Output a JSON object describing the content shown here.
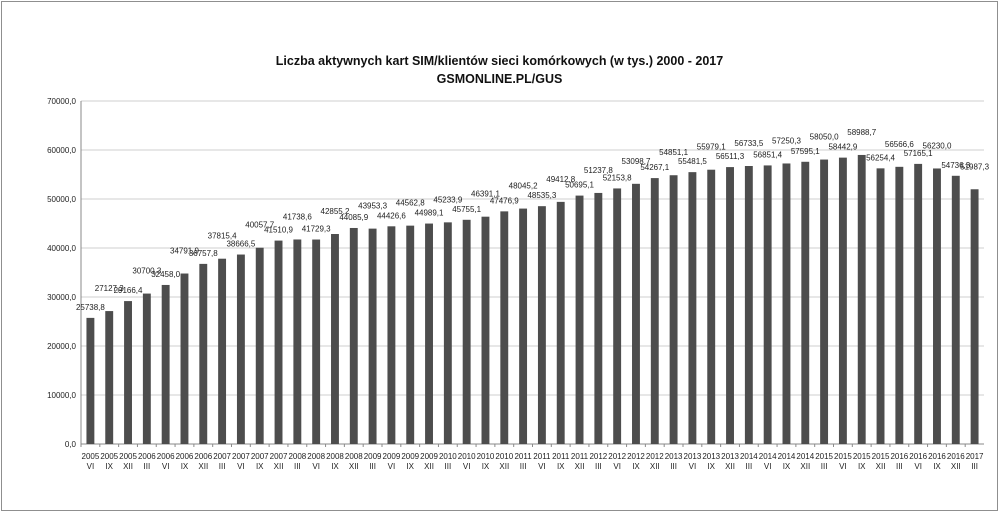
{
  "chart_data": {
    "type": "bar",
    "title": "Liczba aktywnych kart SIM/klientów sieci komórkowych (w tys.) 2000 - 2017",
    "subtitle": "GSMONLINE.PL/GUS",
    "xlabel": "",
    "ylabel": "",
    "ylim": [
      0,
      70000
    ],
    "yticks": [
      "0,0",
      "10000,0",
      "20000,0",
      "30000,0",
      "40000,0",
      "50000,0",
      "60000,0",
      "70000,0"
    ],
    "grid": true,
    "legend": "none",
    "colors": {
      "bar": "#4d4d4d",
      "grid": "#cfcfcf",
      "axis": "#8a8a8a"
    },
    "categories": [
      {
        "year": "2005",
        "q": "VI"
      },
      {
        "year": "2005",
        "q": "IX"
      },
      {
        "year": "2005",
        "q": "XII"
      },
      {
        "year": "2006",
        "q": "III"
      },
      {
        "year": "2006",
        "q": "VI"
      },
      {
        "year": "2006",
        "q": "IX"
      },
      {
        "year": "2006",
        "q": "XII"
      },
      {
        "year": "2007",
        "q": "III"
      },
      {
        "year": "2007",
        "q": "VI"
      },
      {
        "year": "2007",
        "q": "IX"
      },
      {
        "year": "2007",
        "q": "XII"
      },
      {
        "year": "2008",
        "q": "III"
      },
      {
        "year": "2008",
        "q": "VI"
      },
      {
        "year": "2008",
        "q": "IX"
      },
      {
        "year": "2008",
        "q": "XII"
      },
      {
        "year": "2009",
        "q": "III"
      },
      {
        "year": "2009",
        "q": "VI"
      },
      {
        "year": "2009",
        "q": "IX"
      },
      {
        "year": "2009",
        "q": "XII"
      },
      {
        "year": "2010",
        "q": "III"
      },
      {
        "year": "2010",
        "q": "VI"
      },
      {
        "year": "2010",
        "q": "IX"
      },
      {
        "year": "2010",
        "q": "XII"
      },
      {
        "year": "2011",
        "q": "III"
      },
      {
        "year": "2011",
        "q": "VI"
      },
      {
        "year": "2011",
        "q": "IX"
      },
      {
        "year": "2011",
        "q": "XII"
      },
      {
        "year": "2012",
        "q": "III"
      },
      {
        "year": "2012",
        "q": "VI"
      },
      {
        "year": "2012",
        "q": "IX"
      },
      {
        "year": "2012",
        "q": "XII"
      },
      {
        "year": "2013",
        "q": "III"
      },
      {
        "year": "2013",
        "q": "VI"
      },
      {
        "year": "2013",
        "q": "IX"
      },
      {
        "year": "2013",
        "q": "XII"
      },
      {
        "year": "2014",
        "q": "III"
      },
      {
        "year": "2014",
        "q": "VI"
      },
      {
        "year": "2014",
        "q": "IX"
      },
      {
        "year": "2014",
        "q": "XII"
      },
      {
        "year": "2015",
        "q": "III"
      },
      {
        "year": "2015",
        "q": "VI"
      },
      {
        "year": "2015",
        "q": "IX"
      },
      {
        "year": "2015",
        "q": "XII"
      },
      {
        "year": "2016",
        "q": "III"
      },
      {
        "year": "2016",
        "q": "VI"
      },
      {
        "year": "2016",
        "q": "IX"
      },
      {
        "year": "2016",
        "q": "XII"
      },
      {
        "year": "2017",
        "q": "III"
      }
    ],
    "values": [
      25738.8,
      27127.3,
      29166.4,
      30700.3,
      32458.0,
      34791.9,
      36757.8,
      37815.4,
      38666.5,
      40057.7,
      41510.9,
      41738.6,
      41729.3,
      42855.2,
      44085.9,
      43953.3,
      44426.6,
      44562.8,
      44989.1,
      45233.9,
      45755.1,
      46391.1,
      47476.9,
      48045.2,
      48535.3,
      49412.8,
      50695.1,
      51237.8,
      52153.8,
      53098.7,
      54267.1,
      54851.1,
      55481.5,
      55979.1,
      56511.3,
      56733.5,
      56851.4,
      57250.3,
      57595.1,
      58050.0,
      58442.9,
      58988.7,
      56254.4,
      56566.6,
      57165.1,
      56230.0,
      54736.3,
      51987.3
    ],
    "data_labels": [
      "25738,8",
      "27127,3",
      "29166,4",
      "30700,3",
      "32458,0",
      "34791,9",
      "36757,8",
      "37815,4",
      "38666,5",
      "40057,7",
      "41510,9",
      "41738,6",
      "41729,3",
      "42855,2",
      "44085,9",
      "43953,3",
      "44426,6",
      "44562,8",
      "44989,1",
      "45233,9",
      "45755,1",
      "46391,1",
      "47476,9",
      "48045,2",
      "48535,3",
      "49412,8",
      "50695,1",
      "51237,8",
      "52153,8",
      "53098,7",
      "54267,1",
      "54851,1",
      "55481,5",
      "55979,1",
      "56511,3",
      "56733,5",
      "56851,4",
      "57250,3",
      "57595,1",
      "58050,0",
      "58442,9",
      "58988,7",
      "56254,4",
      "56566,6",
      "57165,1",
      "56230,0",
      "54736,3",
      "51987,3"
    ]
  }
}
